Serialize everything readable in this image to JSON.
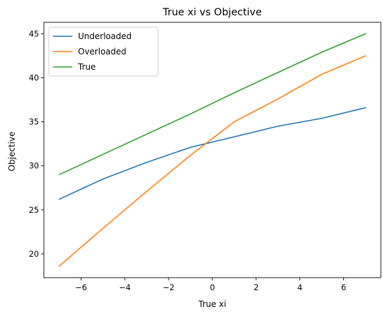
{
  "chart_data": {
    "type": "line",
    "title": "True xi vs Objective",
    "xlabel": "True xi",
    "ylabel": "Objective",
    "xlim": [
      -7.7,
      7.7
    ],
    "ylim": [
      17.3,
      46.3
    ],
    "x_ticks": [
      -6,
      -4,
      -2,
      0,
      2,
      4,
      6
    ],
    "x_tick_labels": [
      "−6",
      "−4",
      "−2",
      "0",
      "2",
      "4",
      "6"
    ],
    "y_ticks": [
      20,
      25,
      30,
      35,
      40,
      45
    ],
    "y_tick_labels": [
      "20",
      "25",
      "30",
      "35",
      "40",
      "45"
    ],
    "grid": false,
    "legend_position": "upper-left",
    "series": [
      {
        "name": "Underloaded",
        "color": "#1f77b4",
        "x": [
          -7,
          -5,
          -3,
          -1,
          1,
          3,
          5,
          7
        ],
        "y": [
          26.2,
          28.5,
          30.4,
          32.1,
          33.3,
          34.5,
          35.4,
          36.6
        ]
      },
      {
        "name": "Overloaded",
        "color": "#ff7f0e",
        "x": [
          -7,
          -5,
          -3,
          -1,
          1,
          3,
          5,
          7
        ],
        "y": [
          18.6,
          22.9,
          27.1,
          31.2,
          35.0,
          37.6,
          40.4,
          42.5
        ]
      },
      {
        "name": "True",
        "color": "#2ca02c",
        "x": [
          -7,
          -5,
          -3,
          -1,
          1,
          3,
          5,
          7
        ],
        "y": [
          29.0,
          31.3,
          33.6,
          35.9,
          38.3,
          40.6,
          42.9,
          45.0
        ]
      }
    ]
  }
}
